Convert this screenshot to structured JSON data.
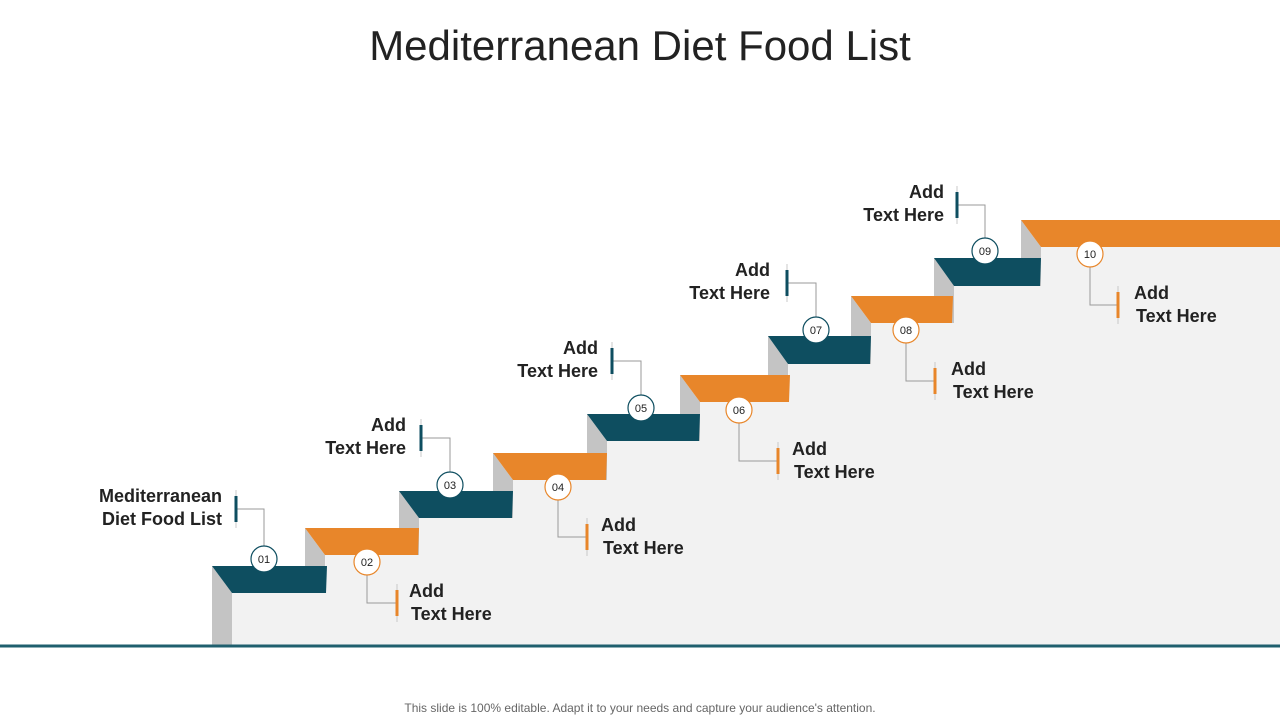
{
  "title": "Mediterranean Diet Food List",
  "footer": "This slide is 100% editable. Adapt it to your needs and capture your audience's attention.",
  "colors": {
    "teal": "#0e4e60",
    "orange": "#e8862a",
    "riser": "#c4c4c4",
    "wall": "#f2f2f2",
    "base_line": "#1f5f6e"
  },
  "steps": [
    {
      "number": "01",
      "line1": "Mediterranean",
      "line2": "Diet Food List",
      "color": "teal"
    },
    {
      "number": "02",
      "line1": "Add",
      "line2": "Text Here",
      "color": "orange"
    },
    {
      "number": "03",
      "line1": "Add",
      "line2": "Text Here",
      "color": "teal"
    },
    {
      "number": "04",
      "line1": "Add",
      "line2": "Text Here",
      "color": "orange"
    },
    {
      "number": "05",
      "line1": "Add",
      "line2": "Text Here",
      "color": "teal"
    },
    {
      "number": "06",
      "line1": "Add",
      "line2": "Text Here",
      "color": "orange"
    },
    {
      "number": "07",
      "line1": "Add",
      "line2": "Text Here",
      "color": "teal"
    },
    {
      "number": "08",
      "line1": "Add",
      "line2": "Text Here",
      "color": "orange"
    },
    {
      "number": "09",
      "line1": "Add",
      "line2": "Text Here",
      "color": "teal"
    },
    {
      "number": "10",
      "line1": "Add",
      "line2": "Text Here",
      "color": "orange"
    }
  ]
}
